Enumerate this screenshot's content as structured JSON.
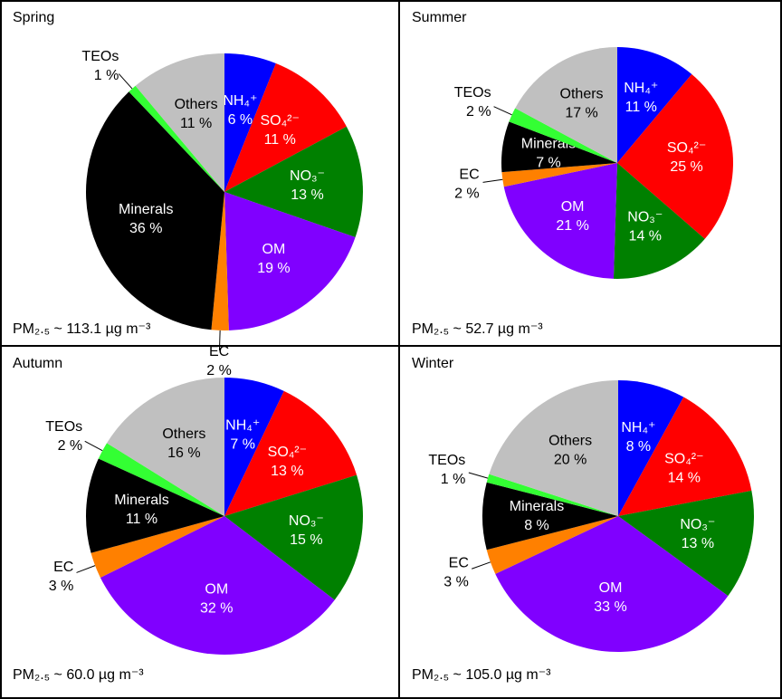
{
  "chart_data": [
    {
      "type": "pie",
      "title": "Spring",
      "categories": [
        "NH₄⁺",
        "SO₄²⁻",
        "NO₃⁻",
        "OM",
        "EC",
        "Minerals",
        "TEOs",
        "Others"
      ],
      "values": [
        6,
        11,
        13,
        19,
        2,
        36,
        1,
        11
      ],
      "value_labels": [
        "6 %",
        "11 %",
        "13 %",
        "19 %",
        "2 %",
        "36 %",
        "1 %",
        "11 %"
      ],
      "colors": [
        "#0000ff",
        "#ff0000",
        "#008000",
        "#8000ff",
        "#ff8000",
        "#000000",
        "#33ff33",
        "#c0c0c0"
      ],
      "annotation": "PM₂.₅ ~ 113.1 µg m⁻³"
    },
    {
      "type": "pie",
      "title": "Summer",
      "categories": [
        "NH₄⁺",
        "SO₄²⁻",
        "NO₃⁻",
        "OM",
        "EC",
        "Minerals",
        "TEOs",
        "Others"
      ],
      "values": [
        11,
        25,
        14,
        21,
        2,
        7,
        2,
        17
      ],
      "value_labels": [
        "11 %",
        "25 %",
        "14 %",
        "21 %",
        "2 %",
        "7 %",
        "2 %",
        "17 %"
      ],
      "colors": [
        "#0000ff",
        "#ff0000",
        "#008000",
        "#8000ff",
        "#ff8000",
        "#000000",
        "#33ff33",
        "#c0c0c0"
      ],
      "annotation": "PM₂.₅ ~ 52.7 µg m⁻³"
    },
    {
      "type": "pie",
      "title": "Autumn",
      "categories": [
        "NH₄⁺",
        "SO₄²⁻",
        "NO₃⁻",
        "OM",
        "EC",
        "Minerals",
        "TEOs",
        "Others"
      ],
      "values": [
        7,
        13,
        15,
        32,
        3,
        11,
        2,
        16
      ],
      "value_labels": [
        "7 %",
        "13 %",
        "15 %",
        "32 %",
        "3 %",
        "11 %",
        "2 %",
        "16 %"
      ],
      "colors": [
        "#0000ff",
        "#ff0000",
        "#008000",
        "#8000ff",
        "#ff8000",
        "#000000",
        "#33ff33",
        "#c0c0c0"
      ],
      "annotation": "PM₂.₅ ~ 60.0 µg m⁻³"
    },
    {
      "type": "pie",
      "title": "Winter",
      "categories": [
        "NH₄⁺",
        "SO₄²⁻",
        "NO₃⁻",
        "OM",
        "EC",
        "Minerals",
        "TEOs",
        "Others"
      ],
      "values": [
        8,
        14,
        13,
        33,
        3,
        8,
        1,
        20
      ],
      "value_labels": [
        "8 %",
        "14 %",
        "13 %",
        "33 %",
        "3 %",
        "8 %",
        "1 %",
        "20 %"
      ],
      "colors": [
        "#0000ff",
        "#ff0000",
        "#008000",
        "#8000ff",
        "#ff8000",
        "#000000",
        "#33ff33",
        "#c0c0c0"
      ],
      "annotation": "PM₂.₅ ~ 105.0 µg m⁻³"
    }
  ]
}
